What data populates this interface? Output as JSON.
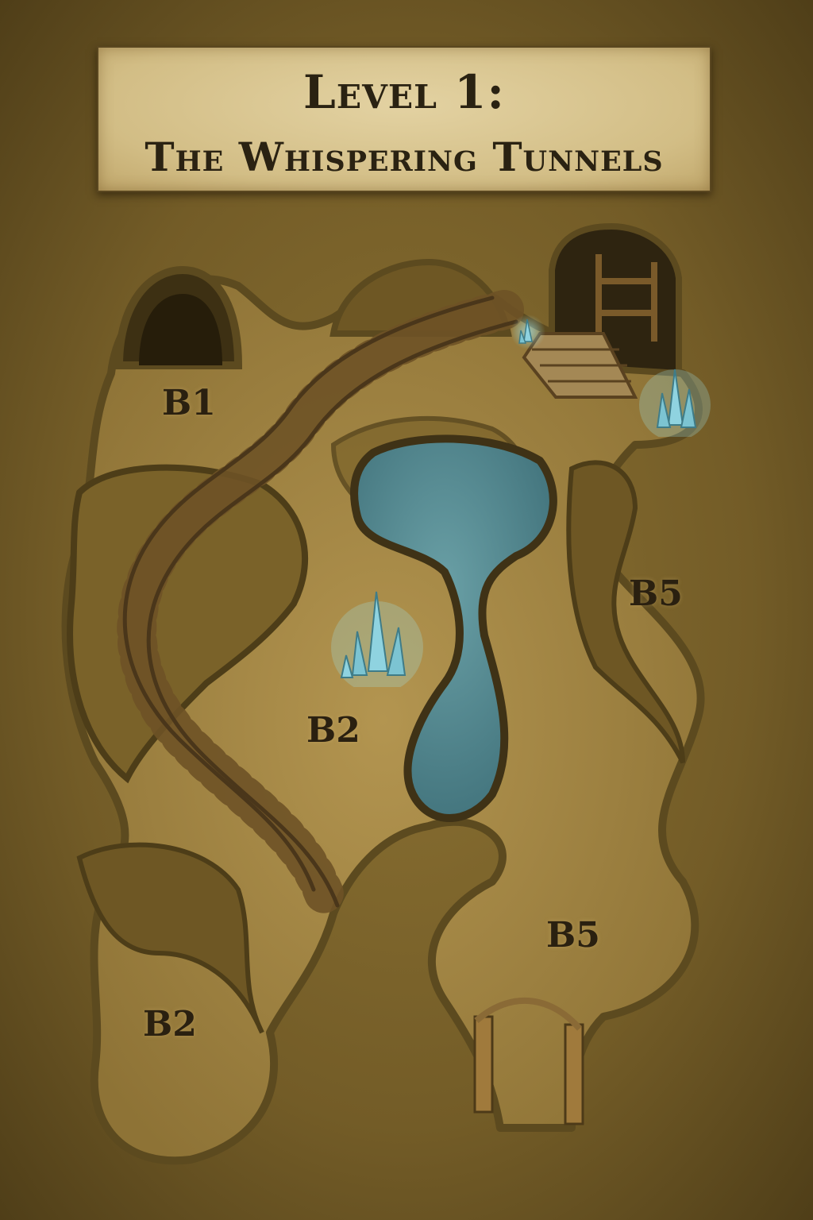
{
  "map": {
    "title_line1": "Level 1:",
    "title_line2": "The Whispering Tunnels",
    "rooms": [
      {
        "label": "B1"
      },
      {
        "label": "B2"
      },
      {
        "label": "B5"
      },
      {
        "label": "B5"
      },
      {
        "label": "B2"
      }
    ],
    "colors": {
      "floor": "#a68a45",
      "wall": "#5c4a1f",
      "water": "#4f8791",
      "crystal": "#8fd3e0",
      "rail": "#6e5226",
      "parchment": "#d8c48e"
    },
    "features": [
      "mine-cart-rails",
      "underground-pool",
      "crystal-clusters",
      "wooden-mine-entrance",
      "wooden-support-posts"
    ]
  }
}
